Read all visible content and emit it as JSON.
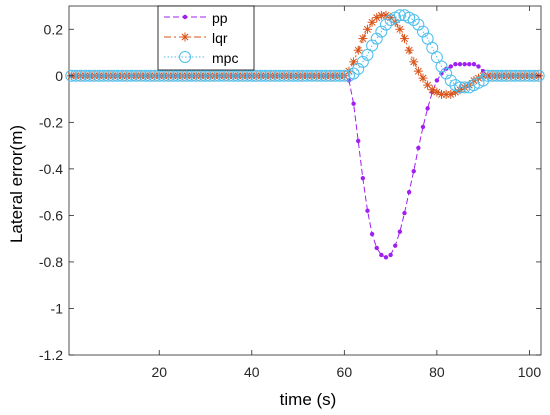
{
  "chart_data": {
    "type": "line",
    "title": "",
    "xlabel": "time (s)",
    "ylabel": "Lateral error(m)",
    "xlim": [
      0.5,
      102.5
    ],
    "ylim": [
      -1.2,
      0.3
    ],
    "xticks": [
      20,
      40,
      60,
      80,
      100
    ],
    "xtick_labels": [
      "20",
      "40",
      "60",
      "80",
      "100"
    ],
    "yticks": [
      -1.2,
      -1,
      -0.8,
      -0.6,
      -0.4,
      -0.2,
      0,
      0.2
    ],
    "ytick_labels": [
      "-1.2",
      "-1",
      "-0.8",
      "-0.6",
      "-0.4",
      "-0.2",
      "0",
      "0.2"
    ],
    "grid": false,
    "legend_position": "top-left",
    "series": [
      {
        "name": "pp",
        "color": "#a020f0",
        "line_style": "dashed",
        "marker": "dot",
        "x": [
          1,
          60,
          61,
          62,
          63,
          64,
          65,
          66,
          67,
          68,
          69,
          70,
          71,
          72,
          73,
          74,
          75,
          76,
          77,
          78,
          79,
          80,
          81,
          82,
          83,
          84,
          85,
          86,
          87,
          88,
          89,
          90,
          91,
          102
        ],
        "y": [
          0,
          0,
          -0.02,
          -0.12,
          -0.28,
          -0.44,
          -0.58,
          -0.68,
          -0.74,
          -0.77,
          -0.78,
          -0.77,
          -0.73,
          -0.67,
          -0.59,
          -0.5,
          -0.41,
          -0.31,
          -0.22,
          -0.14,
          -0.07,
          -0.02,
          0.01,
          0.03,
          0.04,
          0.05,
          0.05,
          0.05,
          0.05,
          0.05,
          0.04,
          0.02,
          0.0,
          0
        ]
      },
      {
        "name": "lqr",
        "color": "#d95319",
        "line_style": "dashdot",
        "marker": "asterisk",
        "x": [
          1,
          60,
          61,
          62,
          63,
          64,
          65,
          66,
          67,
          68,
          69,
          70,
          71,
          72,
          73,
          74,
          75,
          76,
          77,
          78,
          79,
          80,
          81,
          82,
          83,
          84,
          85,
          86,
          87,
          88,
          89,
          90,
          91,
          102
        ],
        "y": [
          0,
          0,
          0.02,
          0.06,
          0.11,
          0.16,
          0.2,
          0.23,
          0.25,
          0.26,
          0.26,
          0.25,
          0.23,
          0.2,
          0.16,
          0.11,
          0.06,
          0.02,
          -0.01,
          -0.04,
          -0.06,
          -0.07,
          -0.08,
          -0.08,
          -0.08,
          -0.07,
          -0.06,
          -0.05,
          -0.04,
          -0.02,
          -0.01,
          0.0,
          0,
          0
        ]
      },
      {
        "name": "mpc",
        "color": "#4dbeee",
        "line_style": "dotted",
        "marker": "circle",
        "x": [
          1,
          61,
          62,
          63,
          64,
          65,
          66,
          67,
          68,
          69,
          70,
          71,
          72,
          73,
          74,
          75,
          76,
          77,
          78,
          79,
          80,
          81,
          82,
          83,
          84,
          85,
          86,
          87,
          88,
          89,
          90,
          91,
          102
        ],
        "y": [
          0,
          0,
          0.01,
          0.03,
          0.06,
          0.09,
          0.13,
          0.16,
          0.19,
          0.22,
          0.24,
          0.25,
          0.26,
          0.26,
          0.25,
          0.24,
          0.22,
          0.19,
          0.16,
          0.12,
          0.08,
          0.04,
          0.01,
          -0.02,
          -0.04,
          -0.05,
          -0.05,
          -0.05,
          -0.04,
          -0.03,
          -0.02,
          0.0,
          0
        ]
      }
    ]
  }
}
